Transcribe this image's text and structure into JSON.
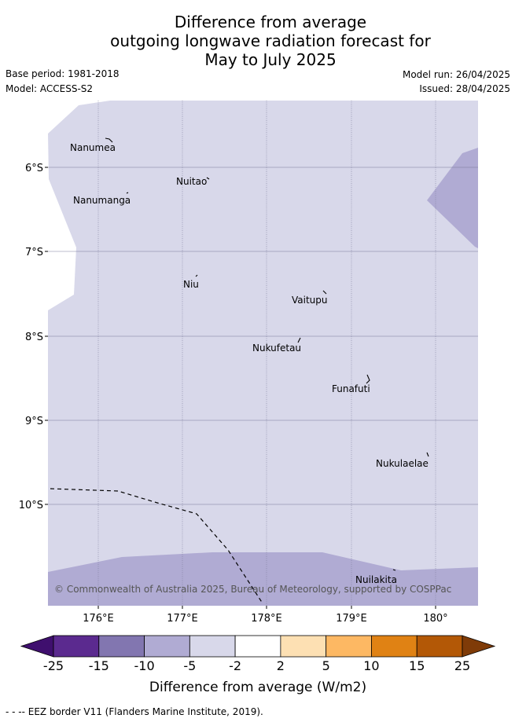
{
  "title": {
    "line1": "Difference from average",
    "line2": "outgoing longwave radiation forecast for",
    "line3": "May to July 2025"
  },
  "meta": {
    "base_period": "Base period: 1981-2018",
    "model": "Model: ACCESS-S2",
    "model_run": "Model run: 26/04/2025",
    "issued": "Issued: 28/04/2025"
  },
  "map": {
    "lat_labels": [
      "6°S",
      "7°S",
      "8°S",
      "9°S",
      "10°S"
    ],
    "lon_labels": [
      "176°E",
      "177°E",
      "178°E",
      "179°E",
      "180°"
    ],
    "islands": {
      "nanumea": "Nanumea",
      "nuitao": "Nuitao",
      "nanumanga": "Nanumanga",
      "niu": "Niu",
      "vaitupu": "Vaitupu",
      "nukufetau": "Nukufetau",
      "funafuti": "Funafuti",
      "nukulaelae": "Nukulaelae",
      "nuilakita": "Nuilakita"
    },
    "copyright": "© Commonwealth of Australia 2025, Bureau of Meteorology, supported by COSPPac",
    "colors": {
      "minus2_to_minus5": "#d8d8ea",
      "minus5_to_minus10": "#b0abd3"
    }
  },
  "colorbar": {
    "tick_labels": [
      "-25",
      "-15",
      "-10",
      "-5",
      "-2",
      "2",
      "5",
      "10",
      "15",
      "25"
    ],
    "label": "Difference from average (W/m2)",
    "colors": [
      "#3f0f6e",
      "#5b2a8f",
      "#8276b0",
      "#b0abd3",
      "#d8d8ea",
      "#ffffff",
      "#fde0b3",
      "#fdb863",
      "#e08214",
      "#b35806",
      "#7f3b08"
    ]
  },
  "footer": "- -  -- EEZ border V11 (Flanders Marine Institute, 2019)."
}
